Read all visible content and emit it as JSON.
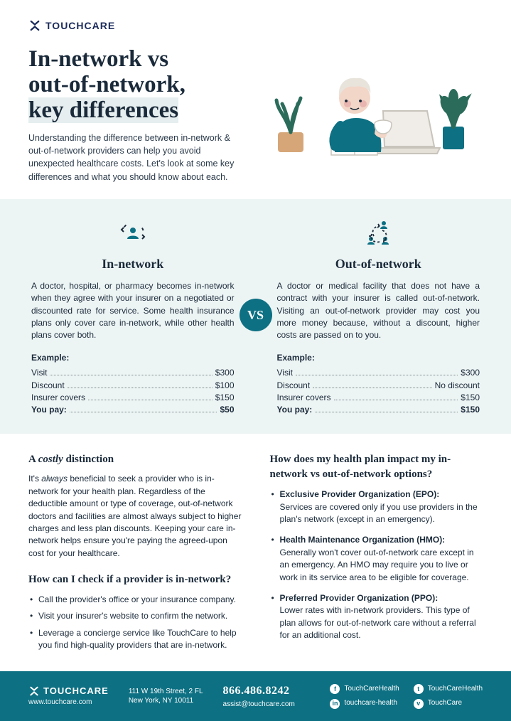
{
  "brand": {
    "name": "TOUCHCARE"
  },
  "hero": {
    "title_line1": "In-network vs",
    "title_line2": "out-of-network,",
    "title_line3": "key differences",
    "subtitle": "Understanding the difference between in-network & out-of-network providers can help you avoid unexpected healthcare costs. Let's look at some key differences and what you should know about each."
  },
  "vs": {
    "badge": "VS",
    "left": {
      "heading": "In-network",
      "body": "A doctor, hospital, or pharmacy becomes in-network when they agree with your insurer on a negotiated or discounted rate for service. Some health insurance plans only cover care in-network, while other health plans cover both.",
      "example_label": "Example:",
      "rows": [
        {
          "label": "Visit",
          "value": "$300"
        },
        {
          "label": "Discount",
          "value": "$100"
        },
        {
          "label": "Insurer covers",
          "value": "$150"
        },
        {
          "label": "You pay:",
          "value": "$50",
          "bold": true
        }
      ]
    },
    "right": {
      "heading": "Out-of-network",
      "body": "A doctor or medical facility that does not have a contract with your insurer is called out-of-network. Visiting an out-of-network provider may cost you more money because, without a discount, higher costs are passed on to you.",
      "example_label": "Example:",
      "rows": [
        {
          "label": "Visit",
          "value": "$300"
        },
        {
          "label": "Discount",
          "value": "No discount"
        },
        {
          "label": "Insurer covers",
          "value": "$150"
        },
        {
          "label": "You pay:",
          "value": "$150",
          "bold": true
        }
      ]
    }
  },
  "lower": {
    "left": {
      "h1_pre": "A ",
      "h1_em": "costly",
      "h1_post": " distinction",
      "p1_pre": "It's ",
      "p1_em": "always",
      "p1_post": " beneficial to seek a provider who is in-network for your health plan. Regardless of the deductible amount or type of coverage, out-of-network doctors and facilities are almost always subject to higher charges and less plan discounts. Keeping your care in-network helps ensure you're paying the agreed-upon cost for your healthcare.",
      "h2": "How can I check if a provider is in-network?",
      "bullets": [
        "Call the provider's office or your insurance company.",
        "Visit your insurer's website to confirm the network.",
        "Leverage a concierge service like TouchCare to help you find high-quality providers that are in-network."
      ]
    },
    "right": {
      "h1": "How does my health plan impact my in-network vs out-of-network options?",
      "bullets": [
        {
          "title": "Exclusive Provider Organization (EPO):",
          "text": "Services are covered only if you use providers in the plan's network (except in an emergency)."
        },
        {
          "title": "Health Maintenance Organization (HMO):",
          "text": "Generally won't cover out-of-network care except in an emergency. An HMO may require you to live or work in its service area to be eligible for coverage."
        },
        {
          "title": "Preferred Provider Organization (PPO):",
          "text": "Lower rates with in-network providers. This type of plan allows for out-of-network care without a referral for an additional cost."
        }
      ]
    }
  },
  "footer": {
    "brand": "TOUCHCARE",
    "url": "www.touchcare.com",
    "addr_line1": "111 W 19th Street, 2 FL",
    "addr_line2": "New York, NY 10011",
    "phone": "866.486.8242",
    "email": "assist@touchcare.com",
    "social": [
      {
        "icon": "f",
        "label": "TouchCareHealth"
      },
      {
        "icon": "t",
        "label": "TouchCareHealth"
      },
      {
        "icon": "in",
        "label": "touchcare-health"
      },
      {
        "icon": "v",
        "label": "TouchCare"
      }
    ]
  },
  "colors": {
    "teal": "#0d7083",
    "mint": "#edf4f4",
    "plant_green": "#2b6b5a",
    "pot_tan": "#d6a679",
    "skin": "#f2d6c8",
    "blush": "#e8b5b0"
  }
}
